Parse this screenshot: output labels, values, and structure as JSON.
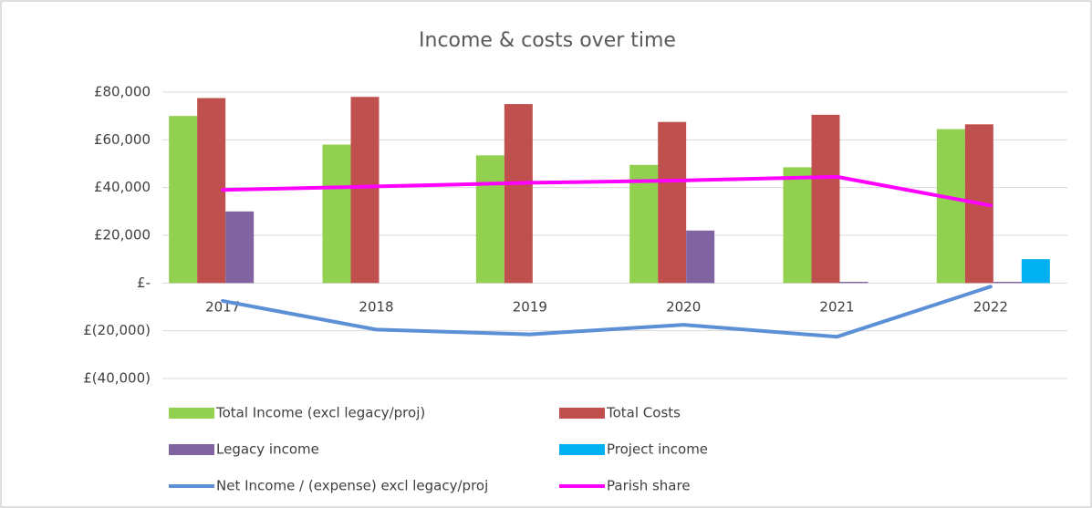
{
  "chart_data": {
    "type": "bar",
    "title": "Income & costs over time",
    "categories": [
      "2017",
      "2018",
      "2019",
      "2020",
      "2021",
      "2022"
    ],
    "series": [
      {
        "name": "Total Income (excl legacy/proj)",
        "color": "#92d050",
        "type": "bar",
        "values": [
          70000,
          58000,
          53500,
          49500,
          48500,
          64500
        ]
      },
      {
        "name": "Total Costs",
        "color": "#c0504d",
        "type": "bar",
        "values": [
          77500,
          78000,
          75000,
          67500,
          70500,
          66500
        ]
      },
      {
        "name": "Legacy income",
        "color": "#8064a2",
        "type": "bar",
        "values": [
          30000,
          0,
          0,
          22000,
          500,
          500
        ]
      },
      {
        "name": "Project income",
        "color": "#00b0f0",
        "type": "bar",
        "values": [
          0,
          0,
          0,
          0,
          0,
          10000
        ]
      },
      {
        "name": "Net Income / (expense) excl legacy/proj",
        "color": "#5b8fd6",
        "type": "line",
        "values": [
          -7500,
          -19500,
          -21500,
          -17500,
          -22500,
          -1500
        ]
      },
      {
        "name": "Parish share",
        "color": "#ff00ff",
        "type": "line",
        "values": [
          39000,
          40500,
          42000,
          43000,
          44500,
          32500
        ]
      }
    ],
    "ylim": [
      -40000,
      80000
    ],
    "yticks": [
      {
        "value": -40000,
        "label": "£(40,000)"
      },
      {
        "value": -20000,
        "label": "£(20,000)"
      },
      {
        "value": 0,
        "label": "£-"
      },
      {
        "value": 20000,
        "label": "£20,000"
      },
      {
        "value": 40000,
        "label": "£40,000"
      },
      {
        "value": 60000,
        "label": "£60,000"
      },
      {
        "value": 80000,
        "label": "£80,000"
      }
    ],
    "grid": true,
    "legend": "bottom"
  }
}
